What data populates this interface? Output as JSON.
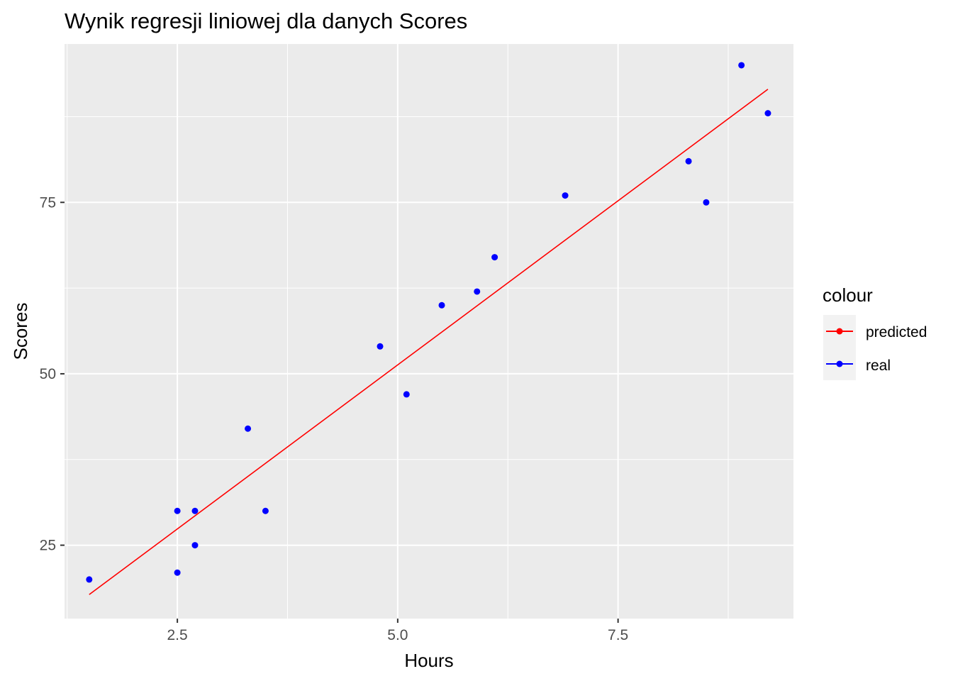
{
  "chart_data": {
    "type": "scatter",
    "title": "Wynik regresji liniowej dla danych Scores",
    "xlabel": "Hours",
    "ylabel": "Scores",
    "xlim": [
      1.22,
      9.49
    ],
    "ylim": [
      14.3,
      98.1
    ],
    "x_ticks": [
      2.5,
      5.0,
      7.5
    ],
    "x_tick_labels": [
      "2.5",
      "5.0",
      "7.5"
    ],
    "y_ticks": [
      25,
      50,
      75
    ],
    "y_tick_labels": [
      "25",
      "50",
      "75"
    ],
    "grid": true,
    "legend": {
      "title": "colour",
      "position": "right",
      "entries": [
        {
          "label": "predicted",
          "color": "#ff0000"
        },
        {
          "label": "real",
          "color": "#0000ff"
        }
      ]
    },
    "series": [
      {
        "name": "real",
        "color": "#0000ff",
        "mark": "point",
        "x": [
          1.5,
          2.5,
          2.5,
          2.7,
          2.7,
          3.3,
          3.5,
          4.8,
          5.1,
          5.5,
          5.9,
          6.1,
          6.9,
          8.3,
          8.5,
          8.9,
          9.2
        ],
        "y": [
          20,
          21,
          30,
          25,
          30,
          42,
          30,
          54,
          47,
          60,
          62,
          67,
          76,
          81,
          75,
          95,
          88
        ]
      },
      {
        "name": "predicted",
        "color": "#ff0000",
        "mark": "line",
        "x": [
          1.5,
          9.2
        ],
        "y": [
          17.8,
          91.5
        ]
      }
    ]
  }
}
